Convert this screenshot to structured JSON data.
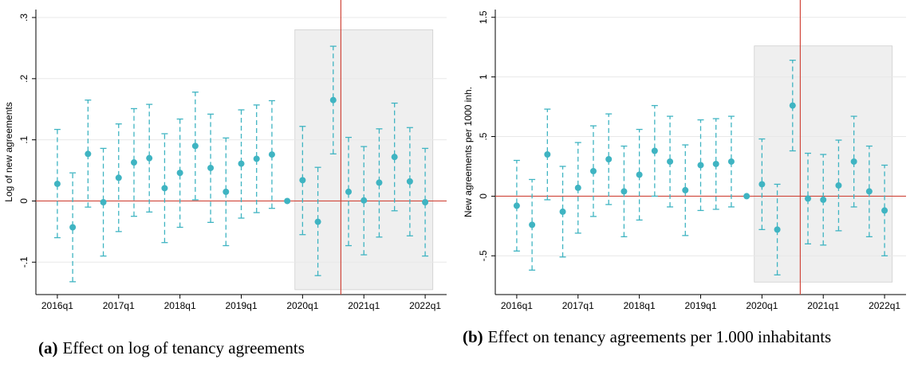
{
  "chart_data": [
    {
      "type": "errorbar",
      "y_label": "Log of new agreements",
      "caption_label": "(a)",
      "caption": "Effect on log of tenancy agreements",
      "categories": [
        "2016q1",
        null,
        null,
        null,
        "2017q1",
        null,
        null,
        null,
        "2018q1",
        null,
        null,
        null,
        "2019q1",
        null,
        null,
        null,
        "2020q1",
        null,
        null,
        null,
        "2021q1",
        null,
        null,
        null,
        "2022q1"
      ],
      "values": [
        0.028,
        -0.043,
        0.077,
        -0.002,
        0.038,
        0.063,
        0.07,
        0.021,
        0.046,
        0.09,
        0.054,
        0.015,
        0.061,
        0.069,
        0.076,
        0,
        0.034,
        -0.034,
        0.165,
        0.015,
        0.001,
        0.03,
        0.072,
        0.032,
        -0.002
      ],
      "lower": [
        -0.06,
        -0.132,
        -0.01,
        -0.09,
        -0.05,
        -0.025,
        -0.018,
        -0.068,
        -0.043,
        0.002,
        -0.035,
        -0.073,
        -0.028,
        -0.019,
        -0.012,
        null,
        -0.055,
        -0.122,
        0.077,
        -0.073,
        -0.088,
        -0.059,
        -0.016,
        -0.057,
        -0.09
      ],
      "upper": [
        0.117,
        0.046,
        0.165,
        0.086,
        0.126,
        0.151,
        0.158,
        0.11,
        0.134,
        0.178,
        0.142,
        0.103,
        0.149,
        0.157,
        0.164,
        null,
        0.122,
        0.055,
        0.253,
        0.104,
        0.089,
        0.118,
        0.16,
        0.12,
        0.086
      ],
      "color": "#3fb4c2",
      "xlim": [
        -1.4,
        25.4
      ],
      "ylim": [
        -0.153,
        0.313
      ],
      "yticks": [
        {
          "value": -0.1,
          "label": "-.1"
        },
        0,
        {
          "value": 0.1,
          "label": ".1"
        },
        {
          "value": 0.2,
          "label": ".2"
        },
        {
          "value": 0.3,
          "label": ".3"
        }
      ],
      "grid": true,
      "shade": {
        "xlim": [
          15.5,
          24.5
        ],
        "ylim": [
          -0.145,
          0.28
        ]
      },
      "vline": 18.5,
      "hline": 0,
      "line_color": "#d0473b"
    },
    {
      "type": "errorbar",
      "y_label": "New agreements per 1000 inh.",
      "caption_label": "(b)",
      "caption": "Effect on tenancy agreements per 1.000 inhabitants",
      "categories": [
        "2016q1",
        null,
        null,
        null,
        "2017q1",
        null,
        null,
        null,
        "2018q1",
        null,
        null,
        null,
        "2019q1",
        null,
        null,
        null,
        "2020q1",
        null,
        null,
        null,
        "2021q1",
        null,
        null,
        null,
        "2022q1"
      ],
      "values": [
        -0.08,
        -0.24,
        0.35,
        -0.13,
        0.07,
        0.21,
        0.31,
        0.04,
        0.18,
        0.38,
        0.29,
        0.05,
        0.26,
        0.27,
        0.29,
        0,
        0.1,
        -0.28,
        0.76,
        -0.02,
        -0.03,
        0.09,
        0.29,
        0.04,
        -0.12
      ],
      "lower": [
        -0.46,
        -0.62,
        -0.03,
        -0.51,
        -0.31,
        -0.17,
        -0.07,
        -0.34,
        -0.2,
        0.0,
        -0.09,
        -0.33,
        -0.12,
        -0.11,
        -0.09,
        null,
        -0.28,
        -0.66,
        0.38,
        -0.4,
        -0.41,
        -0.29,
        -0.09,
        -0.34,
        -0.5
      ],
      "upper": [
        0.3,
        0.14,
        0.73,
        0.25,
        0.45,
        0.59,
        0.69,
        0.42,
        0.56,
        0.76,
        0.67,
        0.43,
        0.64,
        0.65,
        0.67,
        null,
        0.48,
        0.1,
        1.14,
        0.36,
        0.35,
        0.47,
        0.67,
        0.42,
        0.26
      ],
      "color": "#3fb4c2",
      "xlim": [
        -1.4,
        25.4
      ],
      "ylim": [
        -0.825,
        1.565
      ],
      "yticks": [
        {
          "value": -0.5,
          "label": "-.5"
        },
        0,
        {
          "value": 0.5,
          "label": ".5"
        },
        1,
        1.5
      ],
      "grid": true,
      "shade": {
        "xlim": [
          15.5,
          24.5
        ],
        "ylim": [
          -0.72,
          1.26
        ]
      },
      "vline": 18.5,
      "hline": 0,
      "line_color": "#d0473b"
    }
  ]
}
